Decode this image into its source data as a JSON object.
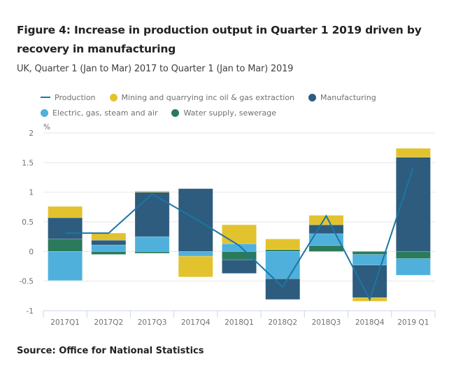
{
  "header": {
    "title": "Figure 4: Increase in production output in Quarter 1 2019 driven by recovery in manufacturing",
    "subtitle": "UK, Quarter 1 (Jan to Mar) 2017 to Quarter 1 (Jan to Mar) 2019"
  },
  "footer": {
    "source": "Source: Office for National Statistics"
  },
  "colors": {
    "production": "#1b76a5",
    "mining": "#e2c32e",
    "manufacturing": "#2e5c7e",
    "electric": "#4fb0dc",
    "water": "#2a7a5b"
  },
  "chart_data": {
    "type": "bar",
    "stacked": true,
    "title": "Figure 4: Increase in production output in Quarter 1 2019 driven by recovery in manufacturing",
    "subtitle": "UK, Quarter 1 (Jan to Mar) 2017 to Quarter 1 (Jan to Mar) 2019",
    "xlabel": "",
    "ylabel": "%",
    "ylim": [
      -1,
      2
    ],
    "yticks": [
      -1,
      -0.5,
      0,
      0.5,
      1,
      1.5,
      2
    ],
    "ytick_labels": [
      "-1",
      "-0.5",
      "0",
      "0.5",
      "1",
      "1.5",
      "2"
    ],
    "grid": true,
    "legend_position": "top",
    "categories": [
      "2017Q1",
      "2017Q2",
      "2017Q3",
      "2017Q4",
      "2018Q1",
      "2018Q2",
      "2018Q3",
      "2018Q4",
      "2019 Q1"
    ],
    "legend": [
      {
        "name": "Production",
        "kind": "line",
        "color_key": "production"
      },
      {
        "name": "Mining and quarrying inc oil & gas extraction",
        "kind": "bar",
        "color_key": "mining"
      },
      {
        "name": "Manufacturing",
        "kind": "bar",
        "color_key": "manufacturing"
      },
      {
        "name": "Electric, gas, steam and air",
        "kind": "bar",
        "color_key": "electric"
      },
      {
        "name": "Water supply, sewerage",
        "kind": "bar",
        "color_key": "water"
      }
    ],
    "series": [
      {
        "name": "Water supply, sewerage",
        "key": "water",
        "type": "bar",
        "values": [
          0.21,
          -0.05,
          -0.03,
          0.0,
          -0.14,
          0.03,
          0.1,
          -0.05,
          -0.12
        ]
      },
      {
        "name": "Electric, gas, steam and air",
        "key": "electric",
        "type": "bar",
        "values": [
          -0.49,
          0.11,
          0.25,
          -0.08,
          0.13,
          -0.46,
          0.2,
          -0.18,
          -0.28
        ]
      },
      {
        "name": "Manufacturing",
        "key": "manufacturing",
        "type": "bar",
        "values": [
          0.36,
          0.08,
          0.75,
          1.06,
          -0.23,
          -0.35,
          0.15,
          -0.55,
          1.59
        ]
      },
      {
        "name": "Mining and quarrying inc oil & gas extraction",
        "key": "mining",
        "type": "bar",
        "values": [
          0.19,
          0.12,
          0.02,
          -0.35,
          0.32,
          0.18,
          0.16,
          -0.06,
          0.15
        ]
      },
      {
        "name": "Production",
        "key": "production",
        "type": "line",
        "values": [
          0.31,
          0.31,
          0.97,
          0.55,
          0.1,
          -0.6,
          0.6,
          -0.81,
          1.42
        ]
      }
    ]
  }
}
